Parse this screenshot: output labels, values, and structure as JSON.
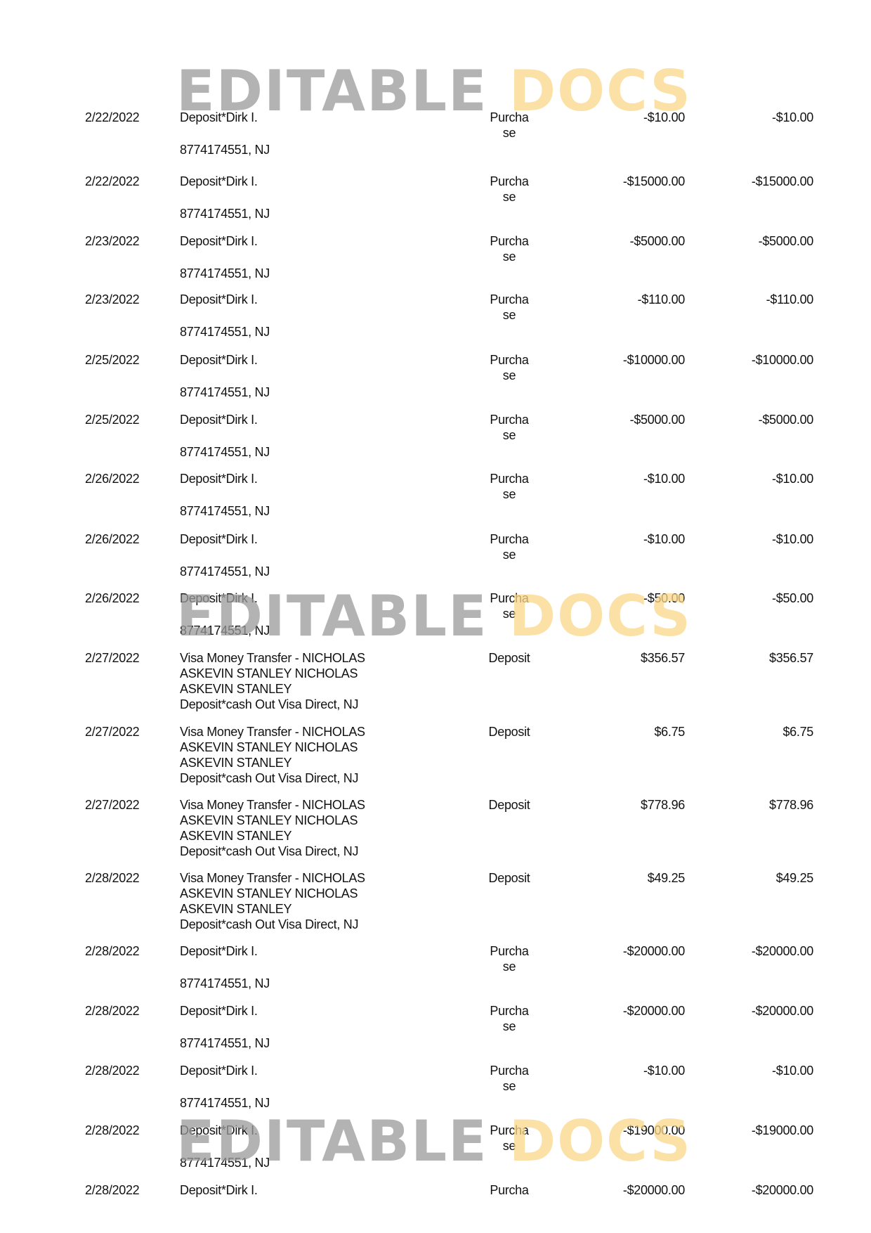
{
  "watermark": {
    "part1": "EDITABLE",
    "part2": "DOCS",
    "colors": {
      "gray": "#9a9a9a",
      "gold": "#fcd88a"
    }
  },
  "transactions": [
    {
      "date": "2/22/2022",
      "desc": [
        "Deposit*Dirk I."
      ],
      "addr": "8774174551, NJ",
      "type": [
        "Purcha",
        "se"
      ],
      "amount": "-$10.00",
      "balance": "-$10.00"
    },
    {
      "date": "2/22/2022",
      "desc": [
        "Deposit*Dirk I."
      ],
      "addr": "8774174551, NJ",
      "type": [
        "Purcha",
        "se"
      ],
      "amount": "-$15000.00",
      "balance": "-$15000.00"
    },
    {
      "date": "2/23/2022",
      "desc": [
        "Deposit*Dirk I."
      ],
      "addr": "8774174551, NJ",
      "type": [
        "Purcha",
        "se"
      ],
      "amount": "-$5000.00",
      "balance": "-$5000.00"
    },
    {
      "date": "2/23/2022",
      "desc": [
        "Deposit*Dirk I."
      ],
      "addr": "8774174551, NJ",
      "type": [
        "Purcha",
        "se"
      ],
      "amount": "-$110.00",
      "balance": "-$110.00"
    },
    {
      "date": "2/25/2022",
      "desc": [
        "Deposit*Dirk I."
      ],
      "addr": "8774174551, NJ",
      "type": [
        "Purcha",
        "se"
      ],
      "amount": "-$10000.00",
      "balance": "-$10000.00"
    },
    {
      "date": "2/25/2022",
      "desc": [
        "Deposit*Dirk I."
      ],
      "addr": "8774174551, NJ",
      "type": [
        "Purcha",
        "se"
      ],
      "amount": "-$5000.00",
      "balance": "-$5000.00"
    },
    {
      "date": "2/26/2022",
      "desc": [
        "Deposit*Dirk I."
      ],
      "addr": "8774174551, NJ",
      "type": [
        "Purcha",
        "se"
      ],
      "amount": "-$10.00",
      "balance": "-$10.00"
    },
    {
      "date": "2/26/2022",
      "desc": [
        "Deposit*Dirk I."
      ],
      "addr": "8774174551, NJ",
      "type": [
        "Purcha",
        "se"
      ],
      "amount": "-$10.00",
      "balance": "-$10.00"
    },
    {
      "date": "2/26/2022",
      "desc": [
        "Deposit*Dirk I."
      ],
      "addr": "8774174551, NJ",
      "type": [
        "Purcha",
        "se"
      ],
      "amount": "-$50.00",
      "balance": "-$50.00"
    },
    {
      "date": "2/27/2022",
      "desc": [
        "Visa Money Transfer - NICHOLAS",
        "ASKEVIN STANLEY NICHOLAS",
        "ASKEVIN STANLEY",
        "Deposit*cash Out Visa Direct, NJ"
      ],
      "type": [
        "Deposit"
      ],
      "amount": "$356.57",
      "balance": "$356.57"
    },
    {
      "date": "2/27/2022",
      "desc": [
        "Visa Money Transfer - NICHOLAS",
        "ASKEVIN STANLEY NICHOLAS",
        "ASKEVIN STANLEY",
        "Deposit*cash Out Visa Direct, NJ"
      ],
      "type": [
        "Deposit"
      ],
      "amount": "$6.75",
      "balance": "$6.75"
    },
    {
      "date": "2/27/2022",
      "desc": [
        "Visa Money Transfer - NICHOLAS",
        "ASKEVIN STANLEY NICHOLAS",
        "ASKEVIN STANLEY",
        "Deposit*cash Out Visa Direct, NJ"
      ],
      "type": [
        "Deposit"
      ],
      "amount": "$778.96",
      "balance": "$778.96"
    },
    {
      "date": "2/28/2022",
      "desc": [
        "Visa Money Transfer - NICHOLAS",
        "ASKEVIN STANLEY NICHOLAS",
        "ASKEVIN STANLEY",
        "Deposit*cash Out Visa Direct, NJ"
      ],
      "type": [
        "Deposit"
      ],
      "amount": "$49.25",
      "balance": "$49.25"
    },
    {
      "date": "2/28/2022",
      "desc": [
        "Deposit*Dirk I."
      ],
      "addr": "8774174551, NJ",
      "type": [
        "Purcha",
        "se"
      ],
      "amount": "-$20000.00",
      "balance": "-$20000.00"
    },
    {
      "date": "2/28/2022",
      "desc": [
        "Deposit*Dirk I."
      ],
      "addr": "8774174551, NJ",
      "type": [
        "Purcha",
        "se"
      ],
      "amount": "-$20000.00",
      "balance": "-$20000.00"
    },
    {
      "date": "2/28/2022",
      "desc": [
        "Deposit*Dirk I."
      ],
      "addr": "8774174551, NJ",
      "type": [
        "Purcha",
        "se"
      ],
      "amount": "-$10.00",
      "balance": "-$10.00"
    },
    {
      "date": "2/28/2022",
      "desc": [
        "Deposit*Dirk I."
      ],
      "addr": "8774174551, NJ",
      "type": [
        "Purcha",
        "se"
      ],
      "amount": "-$19000.00",
      "balance": "-$19000.00"
    },
    {
      "date": "2/28/2022",
      "desc": [
        "Deposit*Dirk I."
      ],
      "type": [
        "Purcha"
      ],
      "amount": "-$20000.00",
      "balance": "-$20000.00"
    }
  ]
}
